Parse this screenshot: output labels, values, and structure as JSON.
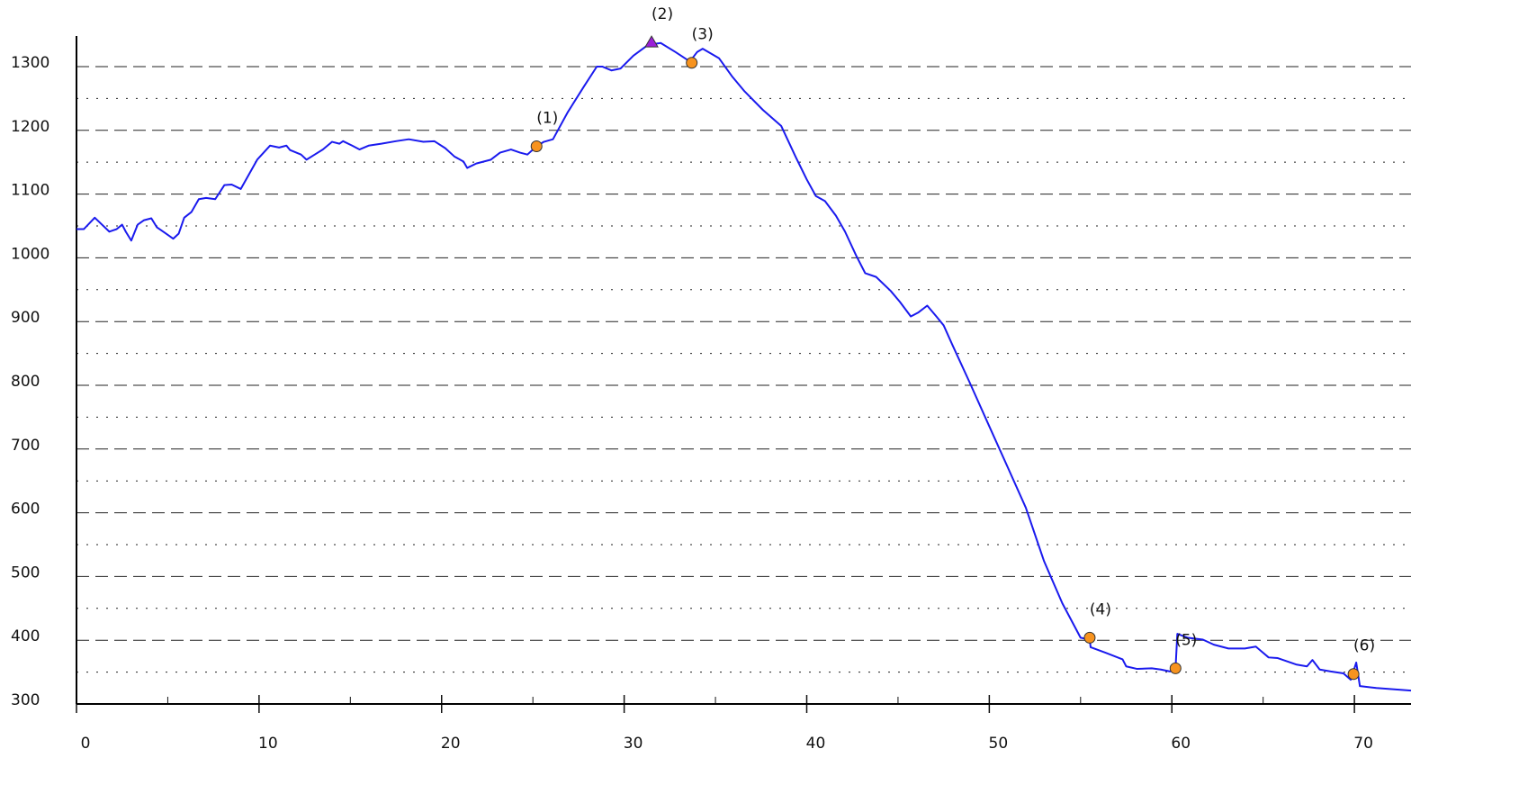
{
  "chart_data": {
    "type": "line",
    "x": [
      0,
      0.4,
      1.0,
      1.8,
      2.2,
      2.5,
      2.7,
      3.0,
      3.35,
      3.7,
      4.1,
      4.4,
      4.9,
      5.3,
      5.6,
      5.9,
      6.3,
      6.7,
      7.1,
      7.6,
      8.1,
      8.5,
      9.0,
      9.9,
      10.6,
      11.1,
      11.5,
      11.7,
      12.3,
      12.6,
      13.05,
      13.5,
      14.0,
      14.4,
      14.6,
      15.1,
      15.5,
      16.0,
      16.7,
      17.5,
      18.2,
      19.0,
      19.6,
      20.2,
      20.7,
      21.2,
      21.4,
      21.9,
      22.7,
      23.2,
      23.8,
      24.3,
      24.7,
      25.2,
      25.6,
      26.1,
      26.9,
      27.8,
      28.5,
      28.8,
      29.3,
      29.8,
      30.5,
      31.3,
      32.0,
      32.8,
      33.6,
      34.0,
      34.3,
      35.2,
      35.9,
      36.6,
      37.6,
      38.6,
      39.4,
      40.0,
      40.5,
      41.0,
      41.6,
      42.1,
      42.7,
      43.2,
      43.8,
      44.6,
      45.1,
      45.7,
      46.1,
      46.6,
      47.1,
      47.5,
      48.0,
      48.9,
      49.9,
      51.0,
      52.0,
      53.0,
      54.0,
      55.0,
      55.5,
      55.55,
      56.4,
      57.3,
      57.5,
      58.1,
      58.9,
      59.4,
      59.9,
      60.2,
      60.3,
      60.85,
      61.7,
      62.3,
      63.1,
      64.0,
      64.6,
      65.3,
      65.8,
      66.8,
      67.4,
      67.7,
      68.1,
      68.7,
      69.4,
      69.8,
      70.1,
      70.3,
      71.2,
      73.1
    ],
    "series": [
      {
        "color": "#1a1aee",
        "values": [
          1045,
          1045,
          1063,
          1041,
          1045,
          1052,
          1041,
          1027,
          1052,
          1059,
          1062,
          1048,
          1038,
          1030,
          1038,
          1063,
          1072,
          1092,
          1094,
          1092,
          1114,
          1115,
          1108,
          1154,
          1176,
          1173,
          1176,
          1169,
          1162,
          1154,
          1162,
          1170,
          1182,
          1179,
          1183,
          1176,
          1170,
          1176,
          1179,
          1183,
          1186,
          1182,
          1183,
          1172,
          1159,
          1151,
          1141,
          1148,
          1154,
          1165,
          1170,
          1165,
          1162,
          1175,
          1182,
          1186,
          1228,
          1269,
          1300,
          1300,
          1294,
          1297,
          1317,
          1334,
          1337,
          1323,
          1308,
          1323,
          1328,
          1313,
          1285,
          1261,
          1232,
          1207,
          1158,
          1123,
          1097,
          1089,
          1066,
          1041,
          1004,
          976,
          970,
          948,
          931,
          908,
          914,
          925,
          908,
          894,
          862,
          806,
          742,
          672,
          608,
          524,
          458,
          404,
          401,
          389,
          380,
          370,
          359,
          355,
          356,
          354,
          351,
          355,
          410,
          404,
          401,
          393,
          387,
          387,
          390,
          373,
          372,
          362,
          359,
          369,
          354,
          351,
          348,
          338,
          365,
          328,
          325,
          321
        ]
      }
    ],
    "markers": [
      {
        "label": "(1)",
        "x": 25.2,
        "y": 1175,
        "shape": "circle",
        "color": "#f7931e"
      },
      {
        "label": "(2)",
        "x": 31.5,
        "y": 1338,
        "shape": "triangle",
        "color": "#9b1fd8"
      },
      {
        "label": "(3)",
        "x": 33.7,
        "y": 1306,
        "shape": "circle",
        "color": "#f7931e"
      },
      {
        "label": "(4)",
        "x": 55.5,
        "y": 404,
        "shape": "circle",
        "color": "#f7931e"
      },
      {
        "label": "(5)",
        "x": 60.2,
        "y": 356,
        "shape": "circle",
        "color": "#f7931e"
      },
      {
        "label": "(6)",
        "x": 69.95,
        "y": 347,
        "shape": "circle",
        "color": "#f7931e"
      }
    ],
    "xlim": [
      0,
      73.1
    ],
    "ylim": [
      300,
      1348
    ],
    "xticks": [
      0,
      10,
      20,
      30,
      40,
      50,
      60,
      70
    ],
    "xminor_ticks": [
      5,
      15,
      25,
      35,
      45,
      55,
      65
    ],
    "yticks": [
      300,
      400,
      500,
      600,
      700,
      800,
      900,
      1000,
      1100,
      1200,
      1300
    ],
    "yminor_ticks": [
      350,
      450,
      550,
      650,
      750,
      850,
      950,
      1050,
      1150,
      1250
    ],
    "grid": true
  }
}
